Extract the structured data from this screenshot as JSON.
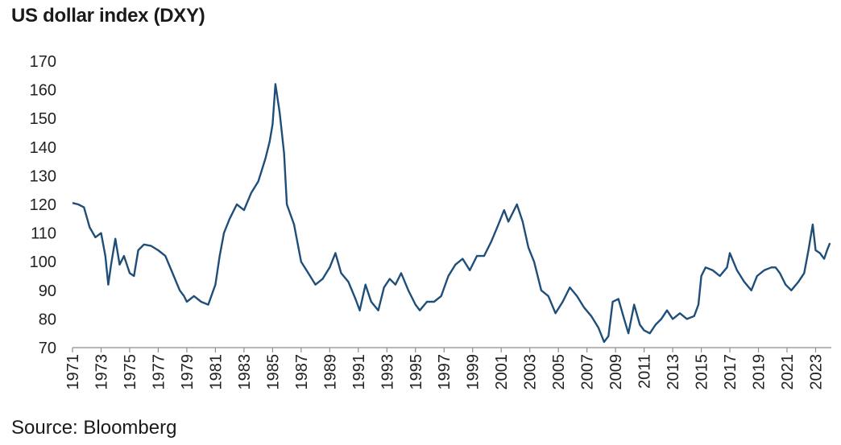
{
  "title": "US dollar index (DXY)",
  "source": "Source: Bloomberg",
  "chart_data": {
    "type": "line",
    "title": "US dollar index (DXY)",
    "xlabel": "",
    "ylabel": "",
    "ylim": [
      70,
      170
    ],
    "yticks": [
      "70",
      "80",
      "90",
      "100",
      "110",
      "120",
      "130",
      "140",
      "150",
      "160",
      "170"
    ],
    "xlim": [
      1971,
      2024.1
    ],
    "xticks": [
      "1971",
      "1973",
      "1975",
      "1977",
      "1979",
      "1981",
      "1983",
      "1985",
      "1987",
      "1989",
      "1991",
      "1993",
      "1995",
      "1997",
      "1999",
      "2001",
      "2003",
      "2005",
      "2007",
      "2009",
      "2011",
      "2013",
      "2015",
      "2017",
      "2019",
      "2021",
      "2023"
    ],
    "grid": false,
    "legend": "none",
    "line_color": "#1f4e79",
    "series": [
      {
        "x": [
          1971.0,
          1971.4,
          1971.8,
          1972.2,
          1972.6,
          1973.0,
          1973.3,
          1973.5,
          1973.7,
          1974.0,
          1974.3,
          1974.6,
          1975.0,
          1975.3,
          1975.6,
          1976.0,
          1976.5,
          1977.0,
          1977.5,
          1978.0,
          1978.5,
          1978.8,
          1979.0,
          1979.5,
          1980.0,
          1980.5,
          1981.0,
          1981.3,
          1981.6,
          1982.0,
          1982.5,
          1983.0,
          1983.5,
          1984.0,
          1984.5,
          1984.8,
          1985.0,
          1985.2,
          1985.5,
          1985.8,
          1986.0,
          1986.5,
          1987.0,
          1987.5,
          1988.0,
          1988.5,
          1989.0,
          1989.4,
          1989.8,
          1990.3,
          1990.8,
          1991.1,
          1991.5,
          1991.9,
          1992.4,
          1992.8,
          1993.2,
          1993.6,
          1994.0,
          1994.5,
          1995.0,
          1995.3,
          1995.8,
          1996.3,
          1996.8,
          1997.3,
          1997.8,
          1998.3,
          1998.8,
          1999.3,
          1999.8,
          2000.3,
          2000.8,
          2001.2,
          2001.5,
          2001.8,
          2002.1,
          2002.5,
          2002.9,
          2003.3,
          2003.8,
          2004.3,
          2004.8,
          2005.3,
          2005.8,
          2006.3,
          2006.8,
          2007.3,
          2007.8,
          2008.2,
          2008.5,
          2008.8,
          2009.2,
          2009.6,
          2009.9,
          2010.3,
          2010.7,
          2011.0,
          2011.4,
          2011.8,
          2012.2,
          2012.6,
          2013.0,
          2013.5,
          2014.0,
          2014.5,
          2014.8,
          2015.0,
          2015.3,
          2015.8,
          2016.3,
          2016.8,
          2017.0,
          2017.5,
          2018.0,
          2018.5,
          2018.9,
          2019.4,
          2019.9,
          2020.2,
          2020.5,
          2020.9,
          2021.3,
          2021.8,
          2022.2,
          2022.5,
          2022.8,
          2023.0,
          2023.3,
          2023.6,
          2023.8,
          2024.0
        ],
        "values": [
          120.5,
          120,
          119,
          112,
          108.5,
          110,
          102,
          92,
          99,
          108,
          99,
          102,
          96,
          95,
          104,
          106,
          105.5,
          104,
          102,
          96,
          90,
          88,
          86,
          88,
          86,
          85,
          92,
          102,
          110,
          115,
          120,
          118,
          124,
          128,
          136,
          142,
          148,
          162,
          152,
          138,
          120,
          113,
          100,
          96,
          92,
          94,
          98,
          103,
          96,
          93,
          87,
          83,
          92,
          86,
          83,
          91,
          94,
          92,
          96,
          90,
          85,
          83,
          86,
          86,
          88,
          95,
          99,
          101,
          97,
          102,
          102,
          107,
          113,
          118,
          114,
          117,
          120,
          114,
          105,
          100,
          90,
          88,
          82,
          86,
          91,
          88,
          84,
          81,
          77,
          72,
          74,
          86,
          87,
          80,
          75,
          85,
          78,
          76,
          75,
          78,
          80,
          83,
          80,
          82,
          80,
          81,
          85,
          95,
          98,
          97,
          95,
          98,
          103,
          97,
          93,
          90,
          95,
          97,
          98,
          98,
          96,
          92,
          90,
          93,
          96,
          104,
          113,
          104,
          103,
          101,
          104,
          106.5
        ]
      }
    ]
  }
}
